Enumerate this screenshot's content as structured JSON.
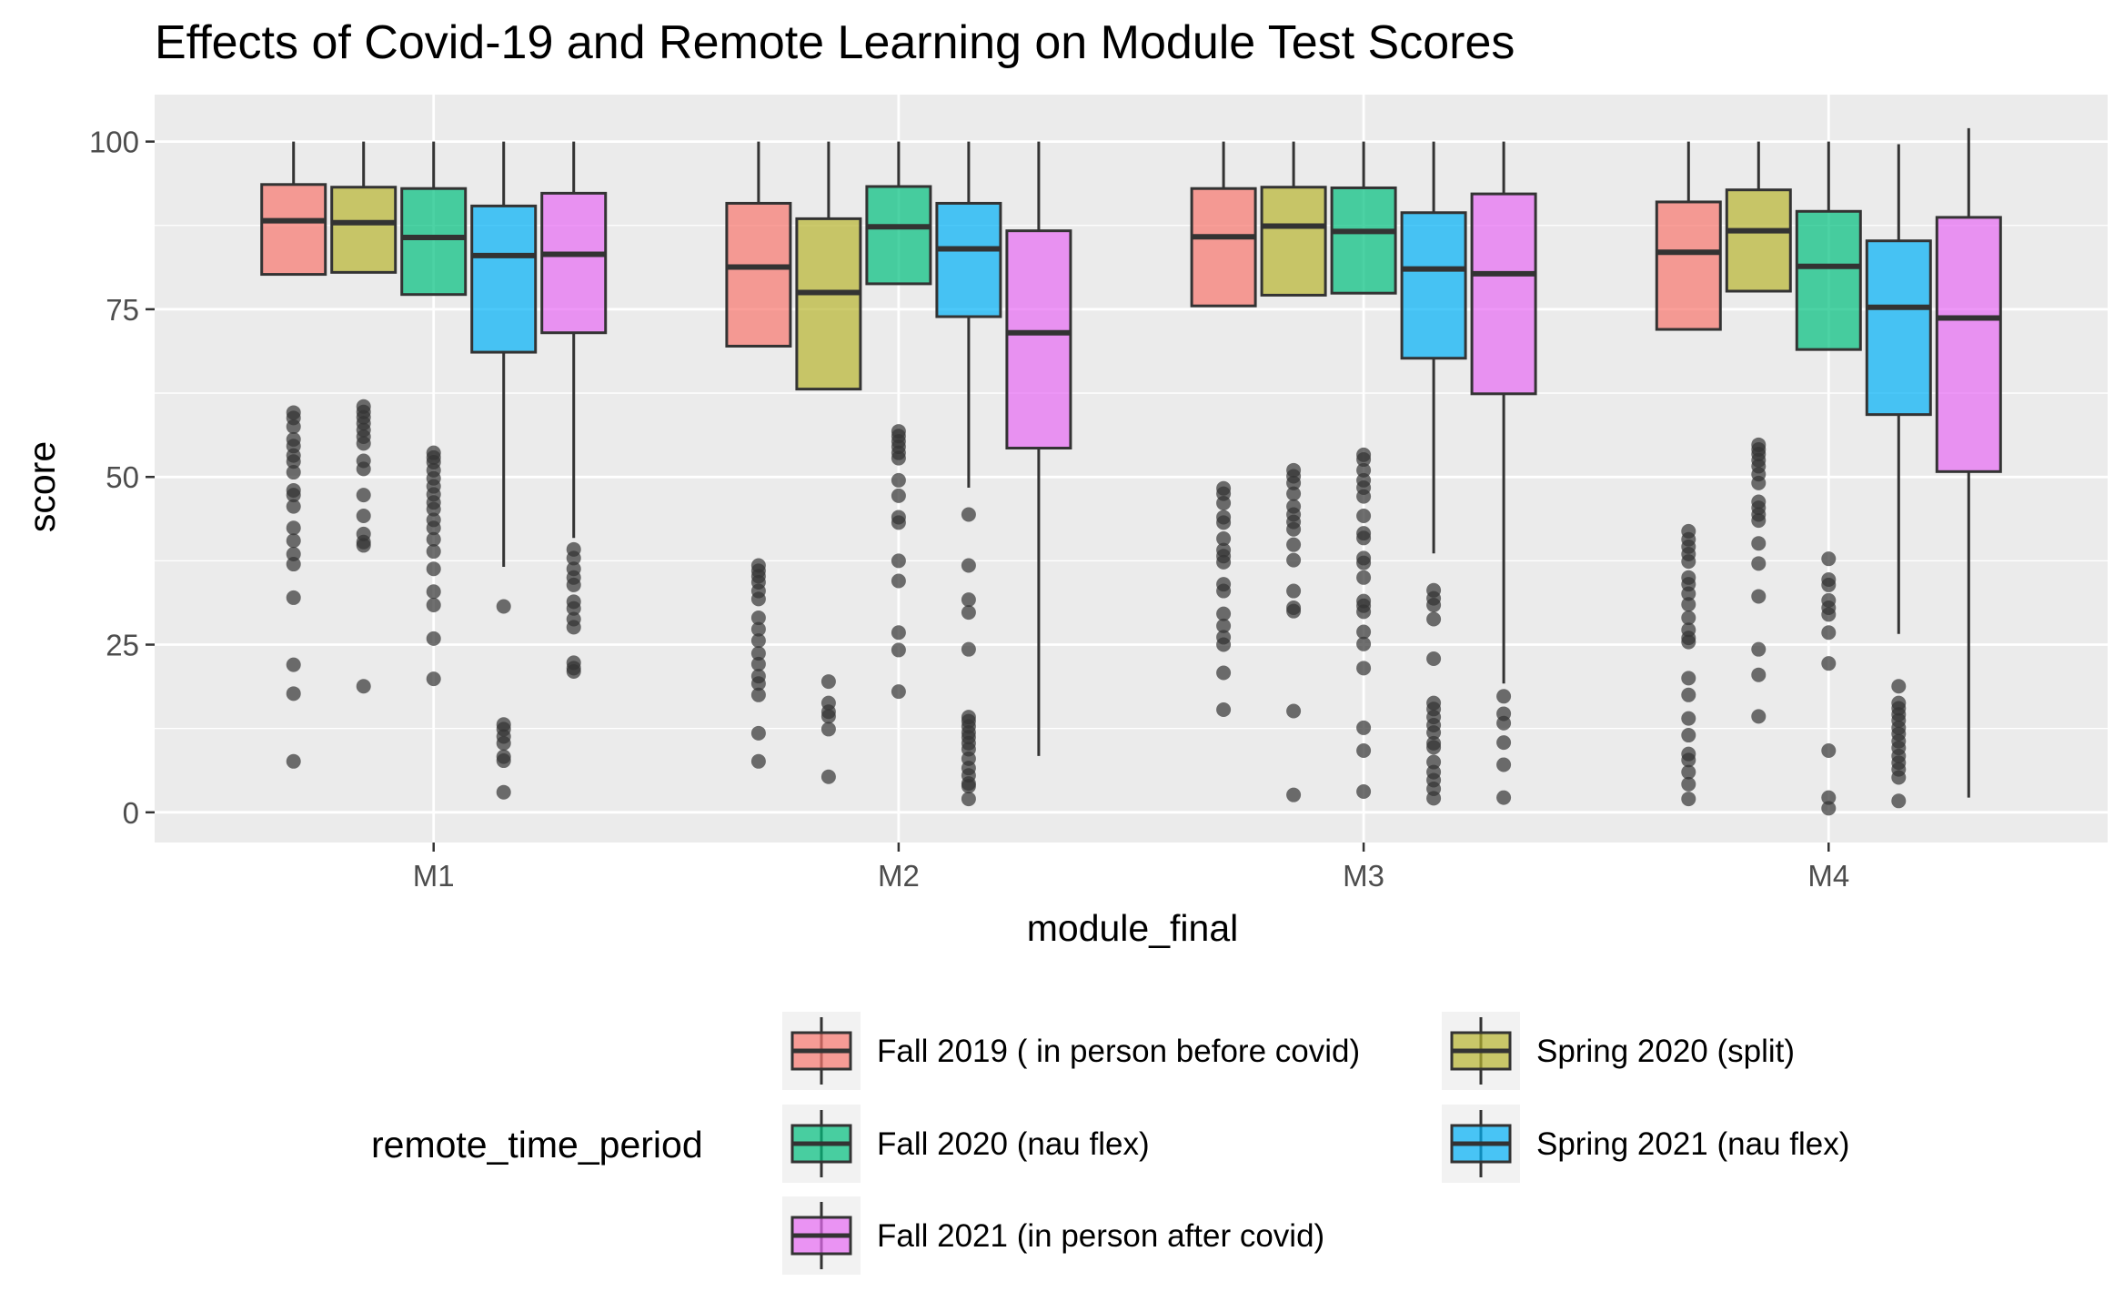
{
  "chart_data": {
    "type": "box",
    "title": "Effects of Covid-19 and Remote Learning on Module Test Scores",
    "xlabel": "module_final",
    "ylabel": "score",
    "ylim": [
      -4.5,
      107
    ],
    "yticks": [
      0,
      25,
      50,
      75,
      100
    ],
    "ytick_labels": [
      "0",
      "25",
      "50",
      "75",
      "100"
    ],
    "grid": true,
    "legend_position": "bottom",
    "legend_title": "remote_time_period",
    "categories": [
      "M1",
      "M2",
      "M3",
      "M4"
    ],
    "series": [
      {
        "name": "Fall 2019 ( in person before covid)",
        "color": "#F8766D",
        "boxes": [
          {
            "whisker_low": 80.2,
            "q1": 80.2,
            "median": 88.2,
            "q3": 93.6,
            "whisker_high": 100,
            "outliers": [
              59.6,
              58.8,
              57.5,
              55.6,
              54.6,
              53.2,
              52.3,
              50.7,
              48.0,
              47.3,
              45.6,
              42.4,
              40.5,
              38.5,
              37.0,
              32.0,
              22.0,
              17.7,
              7.6
            ]
          },
          {
            "whisker_low": 69.5,
            "q1": 69.5,
            "median": 81.3,
            "q3": 90.8,
            "whisker_high": 100,
            "outliers": [
              36.8,
              36.0,
              35.2,
              34.3,
              33.0,
              31.8,
              29.0,
              27.3,
              25.6,
              23.7,
              22.1,
              20.3,
              19.2,
              17.5,
              11.8,
              7.6
            ]
          },
          {
            "whisker_low": 75.5,
            "q1": 75.5,
            "median": 85.8,
            "q3": 93.0,
            "whisker_high": 100,
            "outliers": [
              48.3,
              47.5,
              46.1,
              44.0,
              43.2,
              40.8,
              39.1,
              38.2,
              37.3,
              34.0,
              33.0,
              29.6,
              27.8,
              26.1,
              25.0,
              20.8,
              15.3
            ]
          },
          {
            "whisker_low": 72.0,
            "q1": 72.0,
            "median": 83.5,
            "q3": 91.0,
            "whisker_high": 100,
            "outliers": [
              41.9,
              40.7,
              39.6,
              38.5,
              37.4,
              35.0,
              34.0,
              32.6,
              31.0,
              29.0,
              27.2,
              26.0,
              25.4,
              20.0,
              17.5,
              14.0,
              11.5,
              8.7,
              7.8,
              6.0,
              4.2,
              2.0
            ]
          }
        ]
      },
      {
        "name": "Spring 2020 (split)",
        "color": "#B8B52F",
        "boxes": [
          {
            "whisker_low": 80.5,
            "q1": 80.5,
            "median": 87.9,
            "q3": 93.2,
            "whisker_high": 100,
            "outliers": [
              60.5,
              59.7,
              58.9,
              58.0,
              57.0,
              56.0,
              55.0,
              52.4,
              51.2,
              47.3,
              44.2,
              41.5,
              40.3,
              39.8,
              18.8
            ]
          },
          {
            "whisker_low": 63.1,
            "q1": 63.1,
            "median": 77.5,
            "q3": 88.5,
            "whisker_high": 100,
            "outliers": [
              19.5,
              16.3,
              15.0,
              14.3,
              12.4,
              5.3
            ]
          },
          {
            "whisker_low": 77.1,
            "q1": 77.1,
            "median": 87.4,
            "q3": 93.2,
            "whisker_high": 100,
            "outliers": [
              51.0,
              50.1,
              49.1,
              47.5,
              45.6,
              44.4,
              43.3,
              42.2,
              39.9,
              37.6,
              33.0,
              30.5,
              30.0,
              15.1,
              2.6
            ]
          },
          {
            "whisker_low": 77.7,
            "q1": 77.7,
            "median": 86.7,
            "q3": 92.8,
            "whisker_high": 100,
            "outliers": [
              54.8,
              54.1,
              53.4,
              52.5,
              51.6,
              50.4,
              49.1,
              46.3,
              45.4,
              44.4,
              43.5,
              40.1,
              37.1,
              32.2,
              24.3,
              20.5,
              14.3
            ]
          }
        ]
      },
      {
        "name": "Fall 2020 (nau flex)",
        "color": "#00BF7D",
        "boxes": [
          {
            "whisker_low": 77.2,
            "q1": 77.2,
            "median": 85.7,
            "q3": 93.0,
            "whisker_high": 100,
            "outliers": [
              53.6,
              52.9,
              52.2,
              51.0,
              49.8,
              48.6,
              47.4,
              46.2,
              45.2,
              43.6,
              42.4,
              40.7,
              38.9,
              36.3,
              32.9,
              30.9,
              25.9,
              19.9
            ]
          },
          {
            "whisker_low": 78.8,
            "q1": 78.8,
            "median": 87.3,
            "q3": 93.3,
            "whisker_high": 100,
            "outliers": [
              56.8,
              56.1,
              55.3,
              54.5,
              53.6,
              52.8,
              49.5,
              47.2,
              44.0,
              43.2,
              37.5,
              34.5,
              26.8,
              24.2,
              18.0
            ]
          },
          {
            "whisker_low": 77.4,
            "q1": 77.4,
            "median": 86.6,
            "q3": 93.1,
            "whisker_high": 100,
            "outliers": [
              53.3,
              52.6,
              51.0,
              49.5,
              48.4,
              47.1,
              44.2,
              41.6,
              40.9,
              37.9,
              37.2,
              35.0,
              31.5,
              30.8,
              29.9,
              26.9,
              25.1,
              21.5,
              12.6,
              9.2,
              3.1
            ]
          },
          {
            "whisker_low": 69.0,
            "q1": 69.0,
            "median": 81.4,
            "q3": 89.6,
            "whisker_high": 100,
            "outliers": [
              37.8,
              34.7,
              33.9,
              31.6,
              30.5,
              29.5,
              26.8,
              22.2,
              9.2,
              2.2,
              0.6
            ]
          }
        ]
      },
      {
        "name": "Spring 2021 (nau flex)",
        "color": "#00B0F6",
        "boxes": [
          {
            "whisker_low": 36.6,
            "q1": 68.6,
            "median": 83.0,
            "q3": 90.4,
            "whisker_high": 100,
            "outliers": [
              30.7,
              13.1,
              12.4,
              11.3,
              10.3,
              8.3,
              7.7,
              3.0
            ]
          },
          {
            "whisker_low": 48.4,
            "q1": 73.9,
            "median": 84.0,
            "q3": 90.8,
            "whisker_high": 100,
            "outliers": [
              44.4,
              36.8,
              31.7,
              29.8,
              24.3,
              14.2,
              13.6,
              12.8,
              11.9,
              11.2,
              10.3,
              9.4,
              8.0,
              6.6,
              5.5,
              4.3,
              3.9,
              2.0
            ]
          },
          {
            "whisker_low": 38.6,
            "q1": 67.7,
            "median": 81.0,
            "q3": 89.4,
            "whisker_high": 100,
            "outliers": [
              33.1,
              31.9,
              30.9,
              28.8,
              22.9,
              16.3,
              15.4,
              14.2,
              13.0,
              11.9,
              10.3,
              9.7,
              7.5,
              6.0,
              4.8,
              3.5,
              2.1
            ]
          },
          {
            "whisker_low": 26.6,
            "q1": 59.3,
            "median": 75.3,
            "q3": 85.2,
            "whisker_high": 99.6,
            "outliers": [
              18.8,
              16.3,
              15.5,
              14.6,
              13.7,
              12.6,
              11.7,
              10.6,
              9.6,
              8.4,
              7.4,
              6.4,
              5.2,
              1.7
            ]
          }
        ]
      },
      {
        "name": "Fall 2021 (in person after covid)",
        "color": "#E76BF3",
        "boxes": [
          {
            "whisker_low": 40.9,
            "q1": 71.5,
            "median": 83.2,
            "q3": 92.3,
            "whisker_high": 100,
            "outliers": [
              39.2,
              37.9,
              36.3,
              35.0,
              33.9,
              31.4,
              30.4,
              28.8,
              27.6,
              22.3,
              21.5,
              21.0
            ]
          },
          {
            "whisker_low": 8.4,
            "q1": 54.3,
            "median": 71.5,
            "q3": 86.7,
            "whisker_high": 100,
            "outliers": []
          },
          {
            "whisker_low": 19.2,
            "q1": 62.4,
            "median": 80.3,
            "q3": 92.2,
            "whisker_high": 100,
            "outliers": [
              17.3,
              14.7,
              13.3,
              10.4,
              7.1,
              2.2
            ]
          },
          {
            "whisker_low": 2.2,
            "q1": 50.8,
            "median": 73.7,
            "q3": 88.7,
            "whisker_high": 102,
            "outliers": []
          }
        ]
      }
    ]
  }
}
